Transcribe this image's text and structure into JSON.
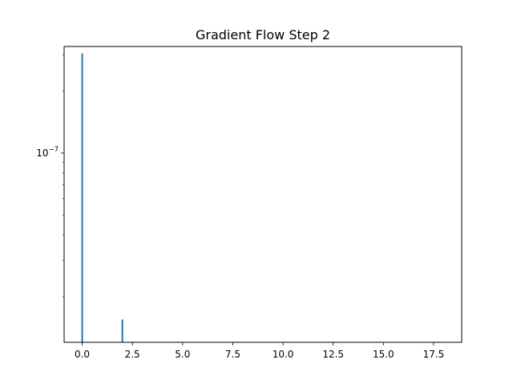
{
  "chart_data": {
    "type": "line",
    "title": "Gradient Flow Step 2",
    "xlabel": "",
    "ylabel": "",
    "xlim": [
      -0.9,
      18.9
    ],
    "ylim": [
      1.2e-08,
      3.3e-07
    ],
    "yscale": "log",
    "x_ticks": [
      0.0,
      2.5,
      5.0,
      7.5,
      10.0,
      12.5,
      15.0,
      17.5
    ],
    "x_tick_labels": [
      "0.0",
      "2.5",
      "5.0",
      "7.5",
      "10.0",
      "12.5",
      "15.0",
      "17.5"
    ],
    "y_major_ticks": [
      1e-07
    ],
    "y_tick_labels": [
      {
        "base": "10",
        "exponent": "−7"
      }
    ],
    "y_minor_ticks": [
      2e-08,
      3e-08,
      4e-08,
      5e-08,
      6e-08,
      7e-08,
      8e-08,
      9e-08,
      2e-07,
      3e-07
    ],
    "grid": false,
    "legend": "none",
    "series": [
      {
        "color": "#1f77b4",
        "x": [
          0,
          0,
          2,
          2
        ],
        "y": [
          1.2e-08,
          3.05e-07,
          1.2e-08,
          1.55e-08
        ]
      }
    ]
  }
}
